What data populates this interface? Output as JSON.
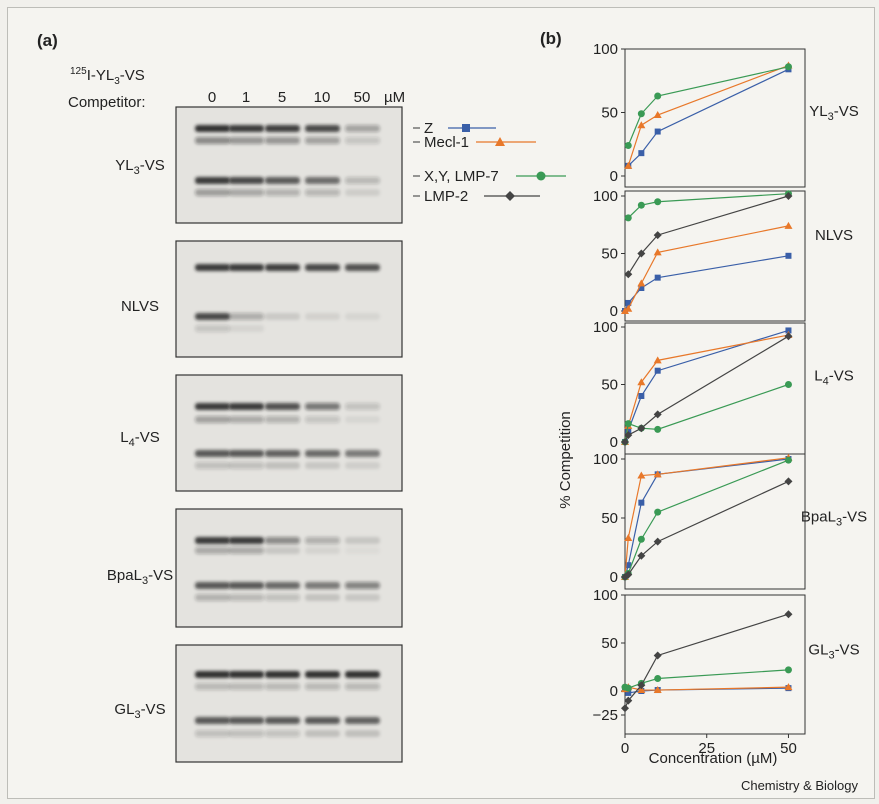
{
  "figure": {
    "panel_a_label": "(a)",
    "panel_b_label": "(b)",
    "credit": "Chemistry & Biology"
  },
  "gel": {
    "probe_prefix": "125",
    "probe_label": "I-YL",
    "probe_sub": "3",
    "probe_suffix": "-VS",
    "competitor_label": "Competitor:",
    "concentrations": [
      "0",
      "1",
      "5",
      "10",
      "50"
    ],
    "unit": "µM",
    "panels": [
      {
        "base": "YL",
        "sub": "3",
        "rest": "-VS"
      },
      {
        "base": "NLVS",
        "sub": "",
        "rest": ""
      },
      {
        "base": "L",
        "sub": "4",
        "rest": "-VS"
      },
      {
        "base": "BpaL",
        "sub": "3",
        "rest": "-VS"
      },
      {
        "base": "GL",
        "sub": "3",
        "rest": "-VS"
      }
    ],
    "band_labels": [
      "Z",
      "Mecl-1",
      "X,Y, LMP-7",
      "LMP-2"
    ]
  },
  "chart_data": {
    "type": "line",
    "xlabel": "Concentration (µM)",
    "ylabel": "% Competition",
    "x": [
      0,
      1,
      5,
      10,
      50
    ],
    "xticks": [
      "0",
      "25",
      "50"
    ],
    "xlim": [
      0,
      52
    ],
    "series_styles": [
      {
        "name": "Z",
        "color": "#3a5fa8",
        "marker": "square"
      },
      {
        "name": "Mecl-1",
        "color": "#e8782a",
        "marker": "triangle"
      },
      {
        "name": "X,Y, LMP-7",
        "color": "#3a9a55",
        "marker": "circle"
      },
      {
        "name": "LMP-2",
        "color": "#444444",
        "marker": "diamond"
      }
    ],
    "panels": [
      {
        "title_base": "YL",
        "title_sub": "3",
        "title_rest": "-VS",
        "ylim": [
          0,
          100
        ],
        "yticks": [
          "0",
          "50",
          "100"
        ],
        "series": [
          {
            "name": "Z",
            "values": [
              8,
              18,
              35,
              84
            ]
          },
          {
            "name": "Mecl-1",
            "values": [
              8,
              40,
              48,
              87
            ]
          },
          {
            "name": "X,Y, LMP-7",
            "values": [
              24,
              49,
              63,
              86
            ]
          }
        ]
      },
      {
        "title_base": "NLVS",
        "title_sub": "",
        "title_rest": "",
        "ylim": [
          0,
          100
        ],
        "yticks": [
          "0",
          "50",
          "100"
        ],
        "series": [
          {
            "name": "Z",
            "values": [
              0,
              7,
              20,
              29,
              48
            ]
          },
          {
            "name": "Mecl-1",
            "values": [
              0,
              2,
              24,
              51,
              74
            ]
          },
          {
            "name": "X,Y, LMP-7",
            "values": [
              81,
              92,
              95,
              102
            ]
          },
          {
            "name": "LMP-2",
            "values": [
              32,
              50,
              66,
              100
            ]
          }
        ]
      },
      {
        "title_base": "L",
        "title_sub": "4",
        "title_rest": "-VS",
        "ylim": [
          0,
          100
        ],
        "yticks": [
          "0",
          "50",
          "100"
        ],
        "series": [
          {
            "name": "Z",
            "values": [
              0,
              10,
              40,
              62,
              97
            ]
          },
          {
            "name": "Mecl-1",
            "values": [
              0,
              14,
              52,
              71,
              93
            ]
          },
          {
            "name": "X,Y, LMP-7",
            "values": [
              0,
              16,
              12,
              11,
              50
            ]
          },
          {
            "name": "LMP-2",
            "values": [
              0,
              6,
              12,
              24,
              92
            ]
          }
        ]
      },
      {
        "title_base": "BpaL",
        "title_sub": "3",
        "title_rest": "-VS",
        "ylim": [
          0,
          100
        ],
        "yticks": [
          "0",
          "50",
          "100"
        ],
        "series": [
          {
            "name": "Z",
            "values": [
              0,
              10,
              63,
              87,
              100
            ]
          },
          {
            "name": "Mecl-1",
            "values": [
              0,
              33,
              86,
              87,
              101
            ]
          },
          {
            "name": "X,Y, LMP-7",
            "values": [
              0,
              3,
              32,
              55,
              99
            ]
          },
          {
            "name": "LMP-2",
            "values": [
              0,
              2,
              18,
              30,
              81
            ]
          }
        ]
      },
      {
        "title_base": "GL",
        "title_sub": "3",
        "title_rest": "-VS",
        "ylim": [
          -25,
          100
        ],
        "yticks": [
          "−25",
          "0",
          "50",
          "100"
        ],
        "series": [
          {
            "name": "Z",
            "values": [
              2,
              -2,
              0,
              1,
              3
            ]
          },
          {
            "name": "Mecl-1",
            "values": [
              2,
              4,
              1,
              1,
              4
            ]
          },
          {
            "name": "X,Y, LMP-7",
            "values": [
              4,
              3,
              8,
              13,
              22
            ]
          },
          {
            "name": "LMP-2",
            "values": [
              -18,
              -10,
              6,
              37,
              80
            ]
          }
        ]
      }
    ]
  }
}
